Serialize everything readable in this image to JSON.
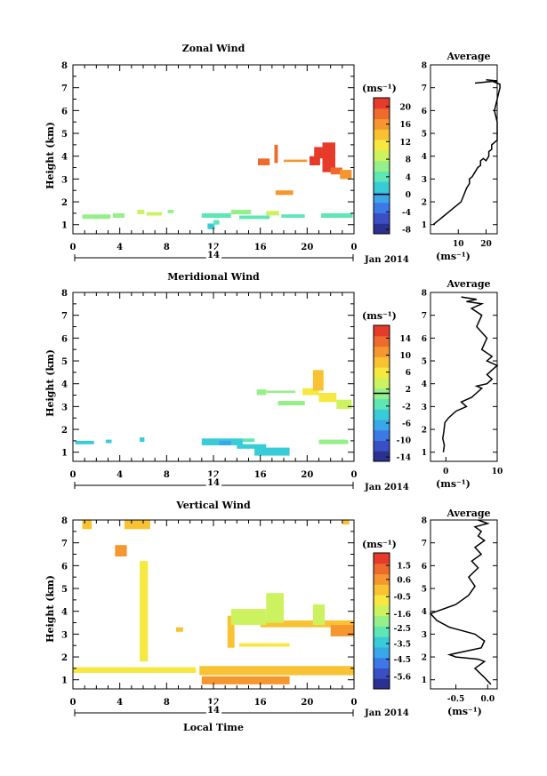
{
  "colormap": [
    "#2b3190",
    "#3a4fc3",
    "#3d79e6",
    "#3aa7ea",
    "#38ccd9",
    "#5ee6b5",
    "#96f08a",
    "#cdf25f",
    "#f6e83e",
    "#f8c232",
    "#f5972e",
    "#ef6a2d",
    "#e63b2a"
  ],
  "shared": {
    "xticks": [
      "0",
      "4",
      "8",
      "12",
      "16",
      "20",
      "0"
    ],
    "date_day": "14",
    "date_label": "Jan 2014",
    "xlabel": "Local Time",
    "ylabel": "Height (km)",
    "yticks": [
      "1",
      "2",
      "3",
      "4",
      "5",
      "6",
      "7",
      "8"
    ],
    "profile_title": "Average",
    "unit_label": "(ms⁻¹)"
  },
  "chart_data": [
    {
      "type": "heatmap",
      "title": "Zonal Wind",
      "xlim": [
        0,
        24
      ],
      "ylim": [
        0.6,
        8
      ],
      "colorbar": {
        "range": [
          -9,
          22
        ],
        "ticks": [
          "20",
          "16",
          "12",
          "8",
          "4",
          "0",
          "-4",
          "-8"
        ],
        "tick_values": [
          20,
          16,
          12,
          8,
          4,
          0,
          -4,
          -8
        ],
        "marker": 0
      },
      "regions": [
        {
          "x0": 0.8,
          "x1": 3.2,
          "y0": 1.25,
          "y1": 1.45,
          "v": 6
        },
        {
          "x0": 3.4,
          "x1": 4.4,
          "y0": 1.3,
          "y1": 1.5,
          "v": 7
        },
        {
          "x0": 5.5,
          "x1": 6.1,
          "y0": 1.45,
          "y1": 1.65,
          "v": 8
        },
        {
          "x0": 6.3,
          "x1": 7.6,
          "y0": 1.4,
          "y1": 1.55,
          "v": 9
        },
        {
          "x0": 8.1,
          "x1": 8.6,
          "y0": 1.5,
          "y1": 1.65,
          "v": 7
        },
        {
          "x0": 11.0,
          "x1": 13.5,
          "y0": 1.3,
          "y1": 1.5,
          "v": 4
        },
        {
          "x0": 11.5,
          "x1": 12.1,
          "y0": 0.8,
          "y1": 1.05,
          "v": 2
        },
        {
          "x0": 12.0,
          "x1": 12.5,
          "y0": 1.0,
          "y1": 1.2,
          "v": 3
        },
        {
          "x0": 13.5,
          "x1": 15.2,
          "y0": 1.45,
          "y1": 1.65,
          "v": 7
        },
        {
          "x0": 14.2,
          "x1": 16.8,
          "y0": 1.25,
          "y1": 1.4,
          "v": 4
        },
        {
          "x0": 16.5,
          "x1": 17.6,
          "y0": 1.4,
          "y1": 1.6,
          "v": 8
        },
        {
          "x0": 17.8,
          "x1": 19.8,
          "y0": 1.3,
          "y1": 1.45,
          "v": 5
        },
        {
          "x0": 21.2,
          "x1": 23.9,
          "y0": 1.3,
          "y1": 1.5,
          "v": 5
        },
        {
          "x0": 17.3,
          "x1": 18.8,
          "y0": 2.3,
          "y1": 2.5,
          "v": 15
        },
        {
          "x0": 15.8,
          "x1": 16.8,
          "y0": 3.6,
          "y1": 3.9,
          "v": 18
        },
        {
          "x0": 17.2,
          "x1": 17.5,
          "y0": 3.7,
          "y1": 4.5,
          "v": 19
        },
        {
          "x0": 18.0,
          "x1": 20.0,
          "y0": 3.75,
          "y1": 3.85,
          "v": 17
        },
        {
          "x0": 20.2,
          "x1": 21.1,
          "y0": 3.6,
          "y1": 4.0,
          "v": 20
        },
        {
          "x0": 20.6,
          "x1": 21.6,
          "y0": 3.9,
          "y1": 4.4,
          "v": 22
        },
        {
          "x0": 21.3,
          "x1": 22.4,
          "y0": 3.3,
          "y1": 4.6,
          "v": 21
        },
        {
          "x0": 22.0,
          "x1": 23.0,
          "y0": 3.2,
          "y1": 3.5,
          "v": 18
        },
        {
          "x0": 22.8,
          "x1": 23.8,
          "y0": 3.0,
          "y1": 3.4,
          "v": 17
        }
      ],
      "profile": {
        "xlim": [
          0,
          24
        ],
        "xticks": [
          "10",
          "20"
        ],
        "xtick_values": [
          10,
          20
        ],
        "x": [
          1,
          3,
          5,
          7,
          9,
          11,
          12,
          13,
          14,
          14,
          15,
          16,
          17,
          18,
          18,
          19,
          20,
          21,
          21,
          22,
          22,
          23,
          24,
          24,
          24,
          24,
          23,
          24,
          25,
          25,
          24,
          23,
          24,
          20,
          16,
          24,
          20
        ],
        "y": [
          1.0,
          1.2,
          1.4,
          1.6,
          1.8,
          2.0,
          2.3,
          2.6,
          2.8,
          3.0,
          3.1,
          3.3,
          3.5,
          3.6,
          3.8,
          3.9,
          3.8,
          4.0,
          4.2,
          4.3,
          4.5,
          4.6,
          4.7,
          4.8,
          5.0,
          5.5,
          6.0,
          6.5,
          7.0,
          7.15,
          7.2,
          7.25,
          7.3,
          7.25,
          7.2,
          7.3,
          7.35
        ]
      }
    },
    {
      "type": "heatmap",
      "title": "Meridional Wind",
      "xlim": [
        0,
        24
      ],
      "ylim": [
        0.6,
        8
      ],
      "colorbar": {
        "range": [
          -15,
          17
        ],
        "ticks": [
          "14",
          "10",
          "6",
          "2",
          "-2",
          "-6",
          "-10",
          "-14"
        ],
        "tick_values": [
          14,
          10,
          6,
          2,
          -2,
          -6,
          -10,
          -14
        ],
        "marker": 1
      },
      "regions": [
        {
          "x0": 0.2,
          "x1": 1.8,
          "y0": 1.35,
          "y1": 1.5,
          "v": -4
        },
        {
          "x0": 2.8,
          "x1": 3.3,
          "y0": 1.4,
          "y1": 1.55,
          "v": -4
        },
        {
          "x0": 5.7,
          "x1": 6.1,
          "y0": 1.45,
          "y1": 1.65,
          "v": -4
        },
        {
          "x0": 11.0,
          "x1": 14.5,
          "y0": 1.3,
          "y1": 1.6,
          "v": -4
        },
        {
          "x0": 12.5,
          "x1": 13.5,
          "y0": 1.3,
          "y1": 1.5,
          "v": -7
        },
        {
          "x0": 14.0,
          "x1": 16.5,
          "y0": 1.15,
          "y1": 1.35,
          "v": -3
        },
        {
          "x0": 15.5,
          "x1": 18.5,
          "y0": 0.85,
          "y1": 1.2,
          "v": -3
        },
        {
          "x0": 14.5,
          "x1": 15.5,
          "y0": 1.45,
          "y1": 1.6,
          "v": -1
        },
        {
          "x0": 21.0,
          "x1": 23.5,
          "y0": 1.35,
          "y1": 1.55,
          "v": 1
        },
        {
          "x0": 17.5,
          "x1": 19.8,
          "y0": 3.05,
          "y1": 3.25,
          "v": 0
        },
        {
          "x0": 15.7,
          "x1": 16.5,
          "y0": 3.5,
          "y1": 3.75,
          "v": 0
        },
        {
          "x0": 16.5,
          "x1": 19.0,
          "y0": 3.6,
          "y1": 3.7,
          "v": 1
        },
        {
          "x0": 19.6,
          "x1": 21.0,
          "y0": 3.5,
          "y1": 3.8,
          "v": 6
        },
        {
          "x0": 20.5,
          "x1": 21.4,
          "y0": 3.7,
          "y1": 4.6,
          "v": 9
        },
        {
          "x0": 21.0,
          "x1": 22.5,
          "y0": 3.2,
          "y1": 3.6,
          "v": 5
        },
        {
          "x0": 22.5,
          "x1": 23.8,
          "y0": 2.9,
          "y1": 3.3,
          "v": 4
        }
      ],
      "profile": {
        "xlim": [
          -3,
          10
        ],
        "xticks": [
          "0",
          "10"
        ],
        "xtick_values": [
          0,
          10
        ],
        "x": [
          -0.5,
          -0.3,
          -0.6,
          -0.4,
          -0.3,
          -0.2,
          0.5,
          2,
          4,
          3,
          5,
          6,
          7,
          6,
          8,
          9,
          8,
          9,
          10,
          8,
          9,
          7,
          8,
          6,
          7,
          5,
          7,
          4,
          6,
          3
        ],
        "y": [
          1.0,
          1.3,
          1.6,
          1.9,
          2.1,
          2.3,
          2.5,
          2.8,
          3.0,
          3.2,
          3.4,
          3.6,
          3.8,
          3.9,
          4.0,
          4.2,
          4.4,
          4.6,
          4.8,
          5.0,
          5.2,
          5.5,
          6.0,
          6.5,
          7.0,
          7.3,
          7.5,
          7.6,
          7.7,
          7.8
        ]
      }
    },
    {
      "type": "heatmap",
      "title": "Vertical Wind",
      "xlim": [
        0,
        24
      ],
      "ylim": [
        0.6,
        8
      ],
      "colorbar": {
        "range": [
          -6.4,
          2.3
        ],
        "ticks": [
          "1.5",
          "0.6",
          "-0.5",
          "-1.6",
          "-2.5",
          "-3.5",
          "-4.5",
          "-5.6"
        ],
        "tick_values": [
          1.5,
          0.6,
          -0.5,
          -1.6,
          -2.5,
          -3.5,
          -4.5,
          -5.6
        ],
        "marker": null
      },
      "regions": [
        {
          "x0": 0.8,
          "x1": 1.6,
          "y0": 7.6,
          "y1": 8.0,
          "v": -0.3
        },
        {
          "x0": 3.6,
          "x1": 4.6,
          "y0": 6.4,
          "y1": 6.9,
          "v": 0.6
        },
        {
          "x0": 4.4,
          "x1": 6.6,
          "y0": 7.6,
          "y1": 8.0,
          "v": -0.3
        },
        {
          "x0": 5.7,
          "x1": 6.4,
          "y0": 1.8,
          "y1": 6.2,
          "v": -0.4
        },
        {
          "x0": 0.0,
          "x1": 10.5,
          "y0": 1.3,
          "y1": 1.55,
          "v": -0.4
        },
        {
          "x0": 10.8,
          "x1": 24.0,
          "y0": 1.2,
          "y1": 1.6,
          "v": -0.2
        },
        {
          "x0": 11.0,
          "x1": 18.5,
          "y0": 0.8,
          "y1": 1.15,
          "v": 0.3
        },
        {
          "x0": 13.2,
          "x1": 13.8,
          "y0": 2.4,
          "y1": 3.8,
          "v": -0.3
        },
        {
          "x0": 14.2,
          "x1": 18.5,
          "y0": 2.45,
          "y1": 2.6,
          "v": -0.5
        },
        {
          "x0": 16.0,
          "x1": 24.0,
          "y0": 3.3,
          "y1": 3.6,
          "v": 0.2
        },
        {
          "x0": 22.0,
          "x1": 24.0,
          "y0": 2.9,
          "y1": 3.4,
          "v": 0.5
        },
        {
          "x0": 13.5,
          "x1": 16.5,
          "y0": 3.4,
          "y1": 4.1,
          "v": -1.5
        },
        {
          "x0": 16.5,
          "x1": 18.0,
          "y0": 3.5,
          "y1": 4.8,
          "v": -1.2
        },
        {
          "x0": 20.5,
          "x1": 21.5,
          "y0": 3.4,
          "y1": 4.3,
          "v": -1.4
        },
        {
          "x0": 8.8,
          "x1": 9.4,
          "y0": 3.1,
          "y1": 3.3,
          "v": -0.3
        },
        {
          "x0": 23.0,
          "x1": 23.6,
          "y0": 7.8,
          "y1": 8.0,
          "v": -0.3
        }
      ],
      "profile": {
        "xlim": [
          -0.9,
          0.15
        ],
        "xticks": [
          "-0.5",
          "0.0"
        ],
        "xtick_values": [
          -0.5,
          0.0
        ],
        "x": [
          0.05,
          -0.05,
          -0.2,
          -0.05,
          -0.15,
          -0.5,
          -0.6,
          -0.1,
          -0.05,
          -0.2,
          -0.6,
          -0.8,
          -0.9,
          -0.5,
          -0.3,
          -0.2,
          -0.3,
          -0.15,
          -0.25,
          -0.1,
          -0.2,
          -0.05,
          -0.15,
          -0.1,
          -0.2,
          0.0,
          -0.15
        ],
        "y": [
          0.8,
          1.1,
          1.5,
          1.8,
          1.9,
          2.0,
          2.1,
          2.4,
          2.7,
          3.0,
          3.3,
          3.6,
          3.9,
          4.3,
          4.7,
          5.1,
          5.5,
          5.9,
          6.2,
          6.5,
          6.8,
          7.1,
          7.3,
          7.5,
          7.7,
          7.85,
          8.0
        ]
      }
    }
  ]
}
